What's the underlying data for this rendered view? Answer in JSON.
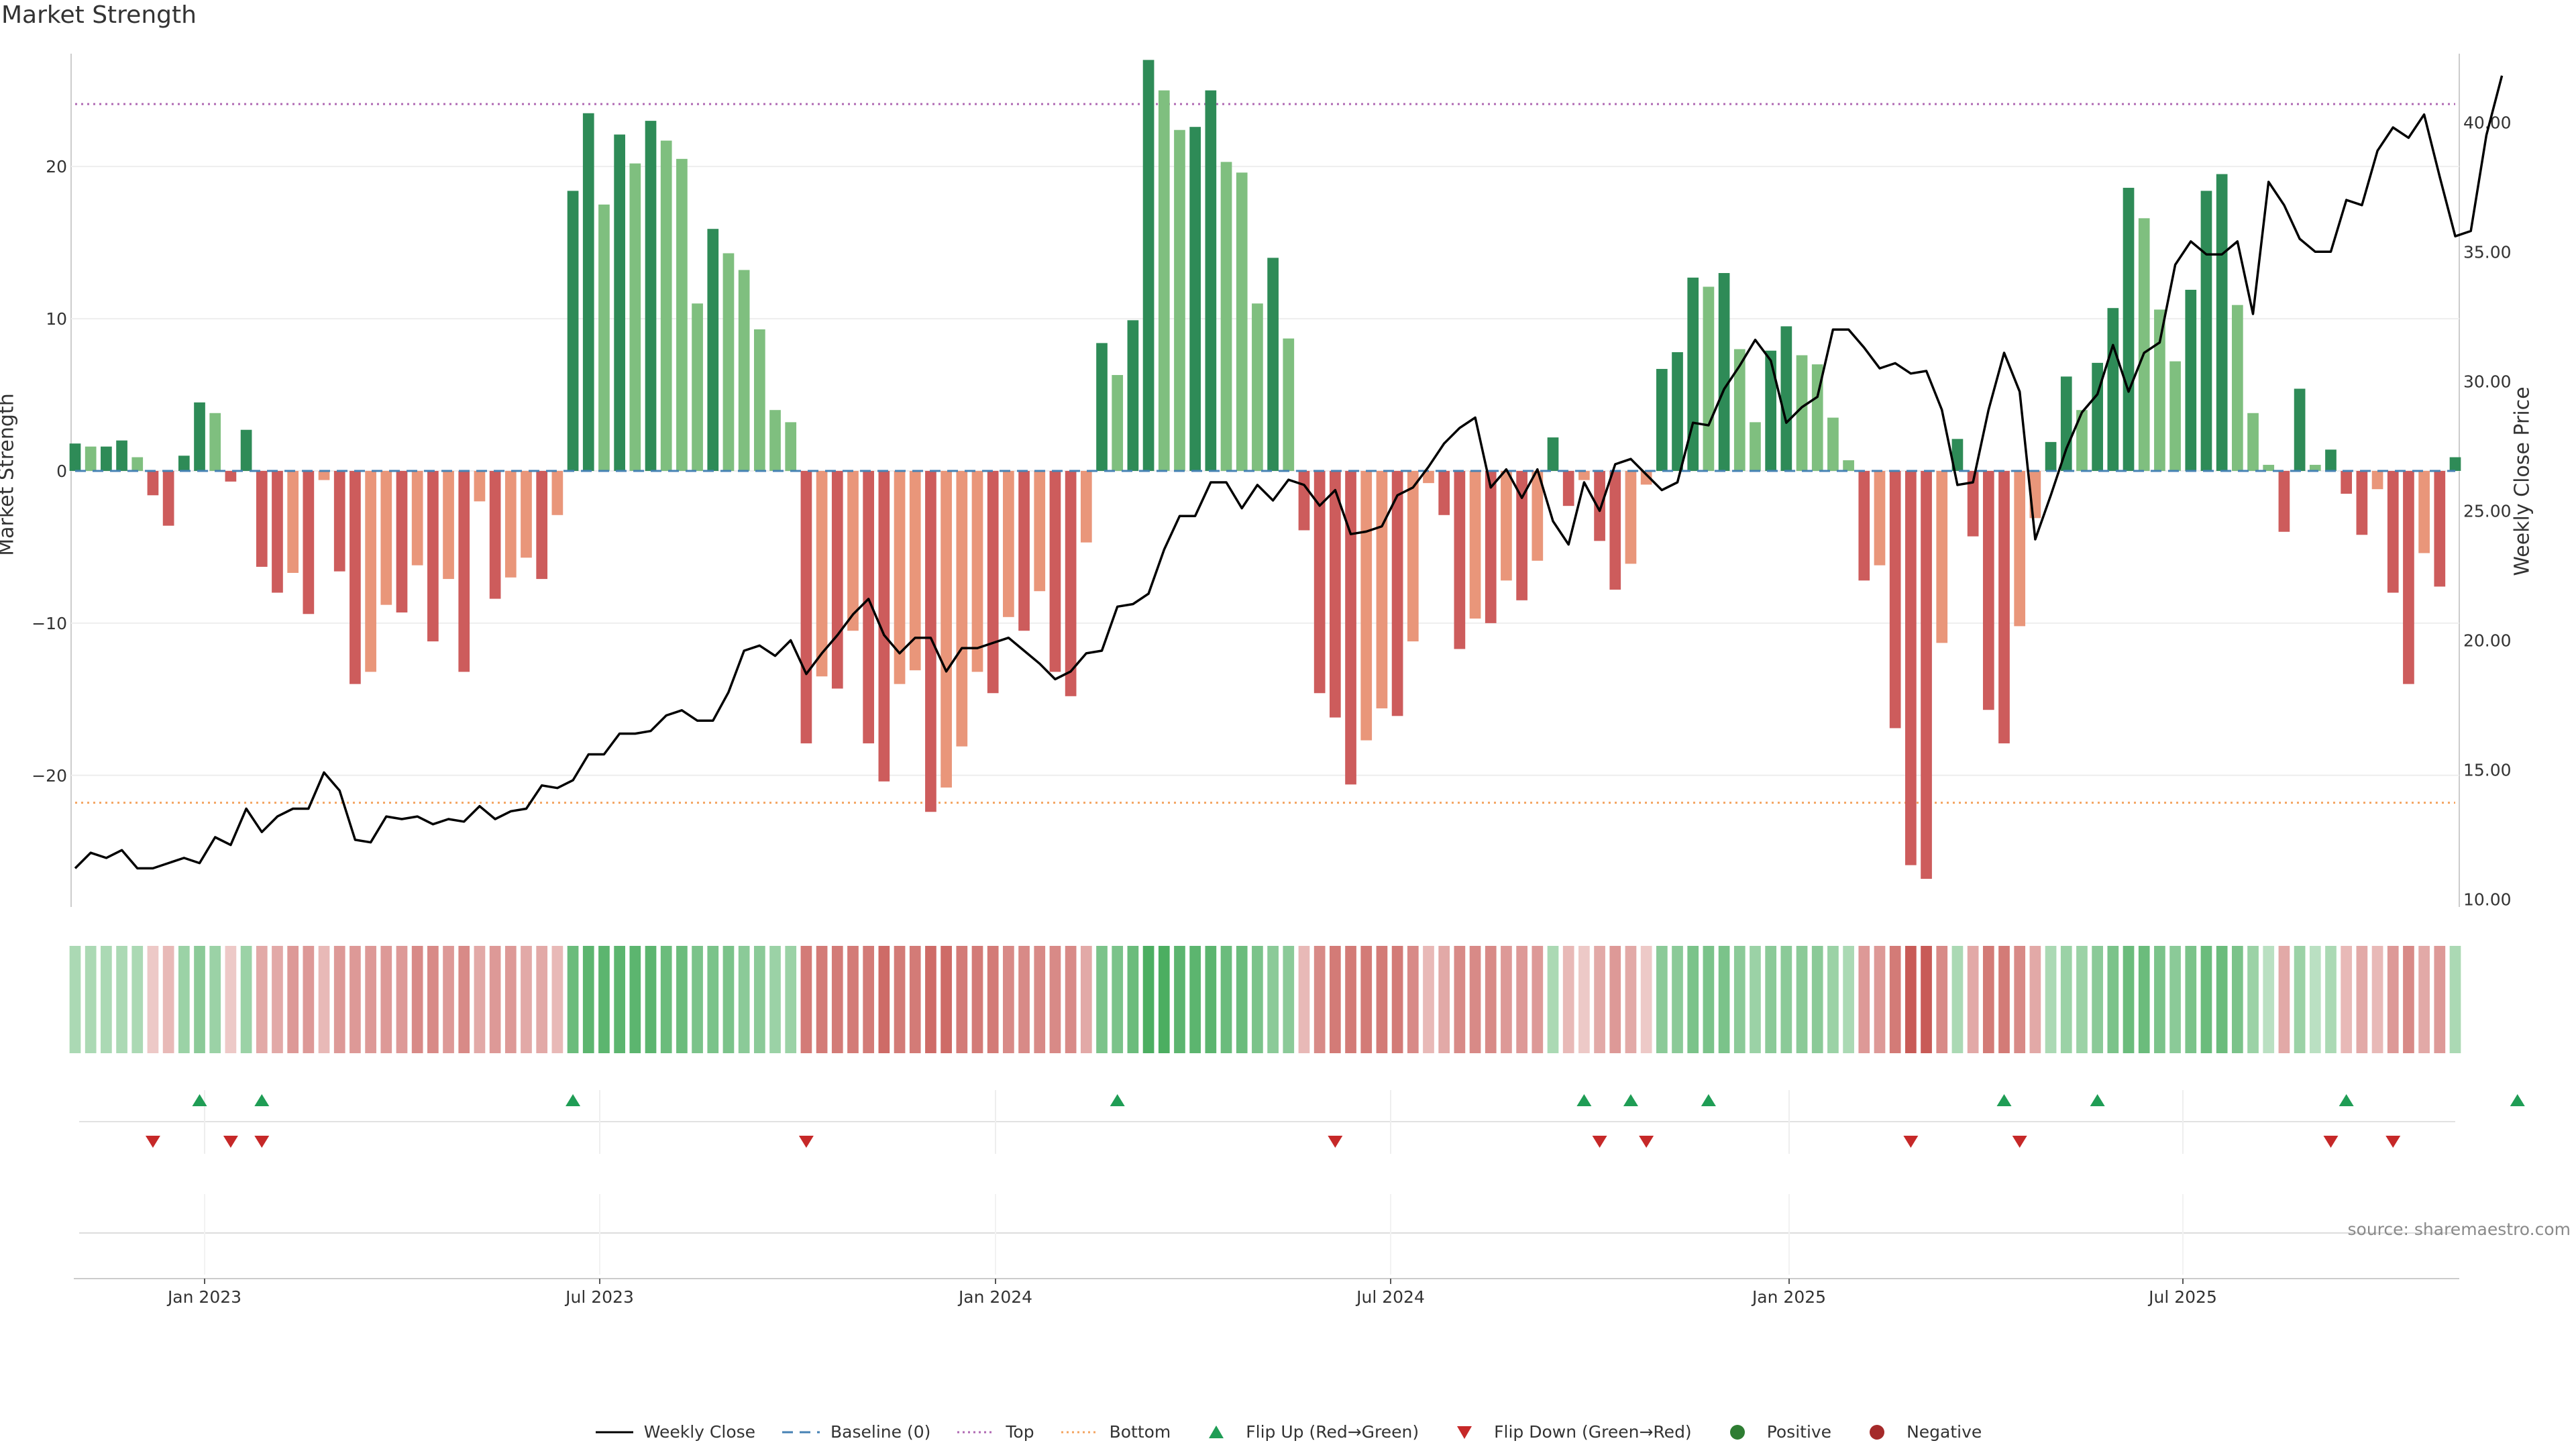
{
  "title": "Market Strength",
  "source_note": "source: sharemaestro.com",
  "colors": {
    "strong_green": "#2e8b57",
    "light_green": "#7fbf7f",
    "strong_red": "#cd5c5c",
    "light_red": "#e9967a",
    "baseline": "#4682b4",
    "top": "#b06ab3",
    "bottom": "#f4a460",
    "close": "#000000",
    "flip_up": "#1f9d55",
    "flip_down": "#c62828"
  },
  "chart_data": {
    "type": "bar",
    "title": "Market Strength",
    "ylabel": "Market Strength",
    "y2label": "Weekly Close Price",
    "ylim": [
      -29,
      27.5
    ],
    "y2lim": [
      9.5,
      42.7
    ],
    "yticks": [
      "20",
      "10",
      "0",
      "−10",
      "−20"
    ],
    "y2ticks": [
      "40.00",
      "35.00",
      "30.00",
      "25.00",
      "20.00",
      "15.00",
      "10.00"
    ],
    "xticks": [
      "Jan 2023",
      "Jul 2023",
      "Jan 2024",
      "Jul 2024",
      "Jan 2025",
      "Jul 2025"
    ],
    "top_level": 24.1,
    "bottom_level": -21.8,
    "strength": [
      1.8,
      1.6,
      1.6,
      2.0,
      0.9,
      -1.6,
      -3.6,
      1.0,
      4.5,
      3.8,
      -0.7,
      2.7,
      -6.3,
      -8.0,
      -6.7,
      -9.4,
      -0.6,
      -6.6,
      -14.0,
      -13.2,
      -8.8,
      -9.3,
      -6.2,
      -11.2,
      -7.1,
      -13.2,
      -2.0,
      -8.4,
      -7.0,
      -5.7,
      -7.1,
      -2.9,
      18.4,
      23.5,
      17.5,
      22.1,
      20.2,
      23.0,
      21.7,
      20.5,
      11.0,
      15.9,
      14.3,
      13.2,
      9.3,
      4.0,
      3.2,
      -17.9,
      -13.5,
      -14.3,
      -10.5,
      -17.9,
      -20.4,
      -14.0,
      -13.1,
      -22.4,
      -20.8,
      -18.1,
      -13.2,
      -14.6,
      -9.6,
      -10.5,
      -7.9,
      -13.2,
      -14.8,
      -4.7,
      8.4,
      6.3,
      9.9,
      27.0,
      25.0,
      22.4,
      22.6,
      25.0,
      20.3,
      19.6,
      11.0,
      14.0,
      8.7,
      -3.9,
      -14.6,
      -16.2,
      -20.6,
      -17.7,
      -15.6,
      -16.1,
      -11.2,
      -0.8,
      -2.9,
      -11.7,
      -9.7,
      -10.0,
      -7.2,
      -8.5,
      -5.9,
      2.2,
      -2.3,
      -0.6,
      -4.6,
      -7.8,
      -6.1,
      -0.9,
      6.7,
      7.8,
      12.7,
      12.1,
      13.0,
      8.0,
      3.2,
      7.9,
      9.5,
      7.6,
      7.0,
      3.5,
      0.7,
      -7.2,
      -6.2,
      -16.9,
      -25.9,
      -26.8,
      -11.3,
      2.1,
      -4.3,
      -15.7,
      -17.9,
      -10.2,
      -3.1,
      1.9,
      6.2,
      4.0,
      7.1,
      10.7,
      18.6,
      16.6,
      10.6,
      7.2,
      11.9,
      18.4,
      19.5,
      10.9,
      3.8,
      0.4,
      -4.0,
      5.4,
      0.4,
      1.4,
      -1.5,
      -4.2,
      -1.2,
      -8.0,
      -14.0,
      -5.4,
      -7.6,
      0.9
    ],
    "close": [
      11.2,
      11.8,
      11.6,
      11.9,
      11.2,
      11.2,
      11.4,
      11.6,
      11.4,
      12.4,
      12.1,
      13.5,
      12.6,
      13.2,
      13.5,
      13.5,
      14.9,
      14.2,
      12.3,
      12.2,
      13.2,
      13.1,
      13.2,
      12.9,
      13.1,
      13.0,
      13.6,
      13.1,
      13.4,
      13.5,
      14.4,
      14.3,
      14.6,
      15.6,
      15.6,
      16.4,
      16.4,
      16.5,
      17.1,
      17.3,
      16.9,
      16.9,
      18.0,
      19.6,
      19.8,
      19.4,
      20.0,
      18.7,
      19.5,
      20.2,
      21.0,
      21.6,
      20.2,
      19.5,
      20.1,
      20.1,
      18.8,
      19.7,
      19.7,
      19.9,
      20.1,
      19.6,
      19.1,
      18.5,
      18.8,
      19.5,
      19.6,
      21.3,
      21.4,
      21.8,
      23.5,
      24.8,
      24.8,
      26.1,
      26.1,
      25.1,
      26.0,
      25.4,
      26.2,
      26.0,
      25.2,
      25.8,
      24.1,
      24.2,
      24.4,
      25.6,
      25.9,
      26.7,
      27.6,
      28.2,
      28.6,
      25.9,
      26.6,
      25.5,
      26.6,
      24.6,
      23.7,
      26.1,
      25.0,
      26.8,
      27.0,
      26.4,
      25.8,
      26.1,
      28.4,
      28.3,
      29.7,
      30.6,
      31.6,
      30.8,
      28.4,
      29.0,
      29.4,
      32.0,
      32.0,
      31.3,
      30.5,
      30.7,
      30.3,
      30.4,
      28.9,
      26.0,
      26.1,
      28.9,
      31.1,
      29.6,
      23.9,
      25.6,
      27.4,
      28.8,
      29.5,
      31.4,
      29.6,
      31.1,
      31.5,
      34.5,
      35.4,
      34.9,
      34.9,
      35.4,
      32.6,
      37.7,
      36.8,
      35.5,
      35.0,
      35.0,
      37.0,
      36.8,
      38.9,
      39.8,
      39.4,
      40.3,
      37.9,
      35.6,
      35.8,
      39.5,
      41.8
    ],
    "strip_intensity": [
      0.3,
      0.3,
      0.3,
      0.3,
      0.3,
      -0.2,
      -0.3,
      0.4,
      0.5,
      0.4,
      -0.2,
      0.4,
      -0.4,
      -0.4,
      -0.5,
      -0.5,
      -0.3,
      -0.5,
      -0.5,
      -0.5,
      -0.5,
      -0.5,
      -0.6,
      -0.6,
      -0.5,
      -0.6,
      -0.4,
      -0.5,
      -0.5,
      -0.4,
      -0.4,
      -0.3,
      0.7,
      0.8,
      0.8,
      0.8,
      0.8,
      0.8,
      0.7,
      0.7,
      0.6,
      0.6,
      0.6,
      0.5,
      0.5,
      0.4,
      0.4,
      -0.7,
      -0.7,
      -0.7,
      -0.7,
      -0.7,
      -0.8,
      -0.7,
      -0.7,
      -0.8,
      -0.8,
      -0.7,
      -0.7,
      -0.7,
      -0.6,
      -0.6,
      -0.6,
      -0.6,
      -0.6,
      -0.4,
      0.6,
      0.6,
      0.7,
      0.9,
      0.9,
      0.8,
      0.8,
      0.8,
      0.7,
      0.7,
      0.6,
      0.5,
      0.5,
      -0.3,
      -0.6,
      -0.7,
      -0.7,
      -0.7,
      -0.7,
      -0.7,
      -0.6,
      -0.3,
      -0.4,
      -0.6,
      -0.6,
      -0.6,
      -0.5,
      -0.5,
      -0.5,
      0.3,
      -0.3,
      -0.2,
      -0.4,
      -0.5,
      -0.4,
      -0.2,
      0.5,
      0.5,
      0.6,
      0.6,
      0.6,
      0.5,
      0.4,
      0.5,
      0.5,
      0.5,
      0.5,
      0.4,
      0.3,
      -0.5,
      -0.5,
      -0.7,
      -0.9,
      -0.9,
      -0.6,
      0.3,
      -0.4,
      -0.7,
      -0.7,
      -0.6,
      -0.4,
      0.3,
      0.4,
      0.4,
      0.5,
      0.6,
      0.7,
      0.7,
      0.6,
      0.5,
      0.6,
      0.7,
      0.7,
      0.6,
      0.4,
      0.2,
      -0.4,
      0.4,
      0.2,
      0.3,
      -0.3,
      -0.4,
      -0.3,
      -0.5,
      -0.6,
      -0.4,
      -0.5,
      0.3
    ],
    "flips_up": [
      8,
      12,
      32,
      67,
      97,
      100,
      105,
      124,
      130,
      146,
      157
    ],
    "flips_down": [
      5,
      10,
      12,
      47,
      81,
      98,
      101,
      118,
      125,
      145,
      149
    ],
    "legend": [
      {
        "label": "Weekly Close",
        "symbol": "line"
      },
      {
        "label": "Baseline (0)",
        "symbol": "dash"
      },
      {
        "label": "Top",
        "symbol": "dot-purple"
      },
      {
        "label": "Bottom",
        "symbol": "dot-orange"
      },
      {
        "label": "Flip Up (Red→Green)",
        "symbol": "tri-up"
      },
      {
        "label": "Flip Down (Green→Red)",
        "symbol": "tri-down"
      },
      {
        "label": "Positive",
        "symbol": "circle-green"
      },
      {
        "label": "Negative",
        "symbol": "circle-red"
      }
    ]
  }
}
